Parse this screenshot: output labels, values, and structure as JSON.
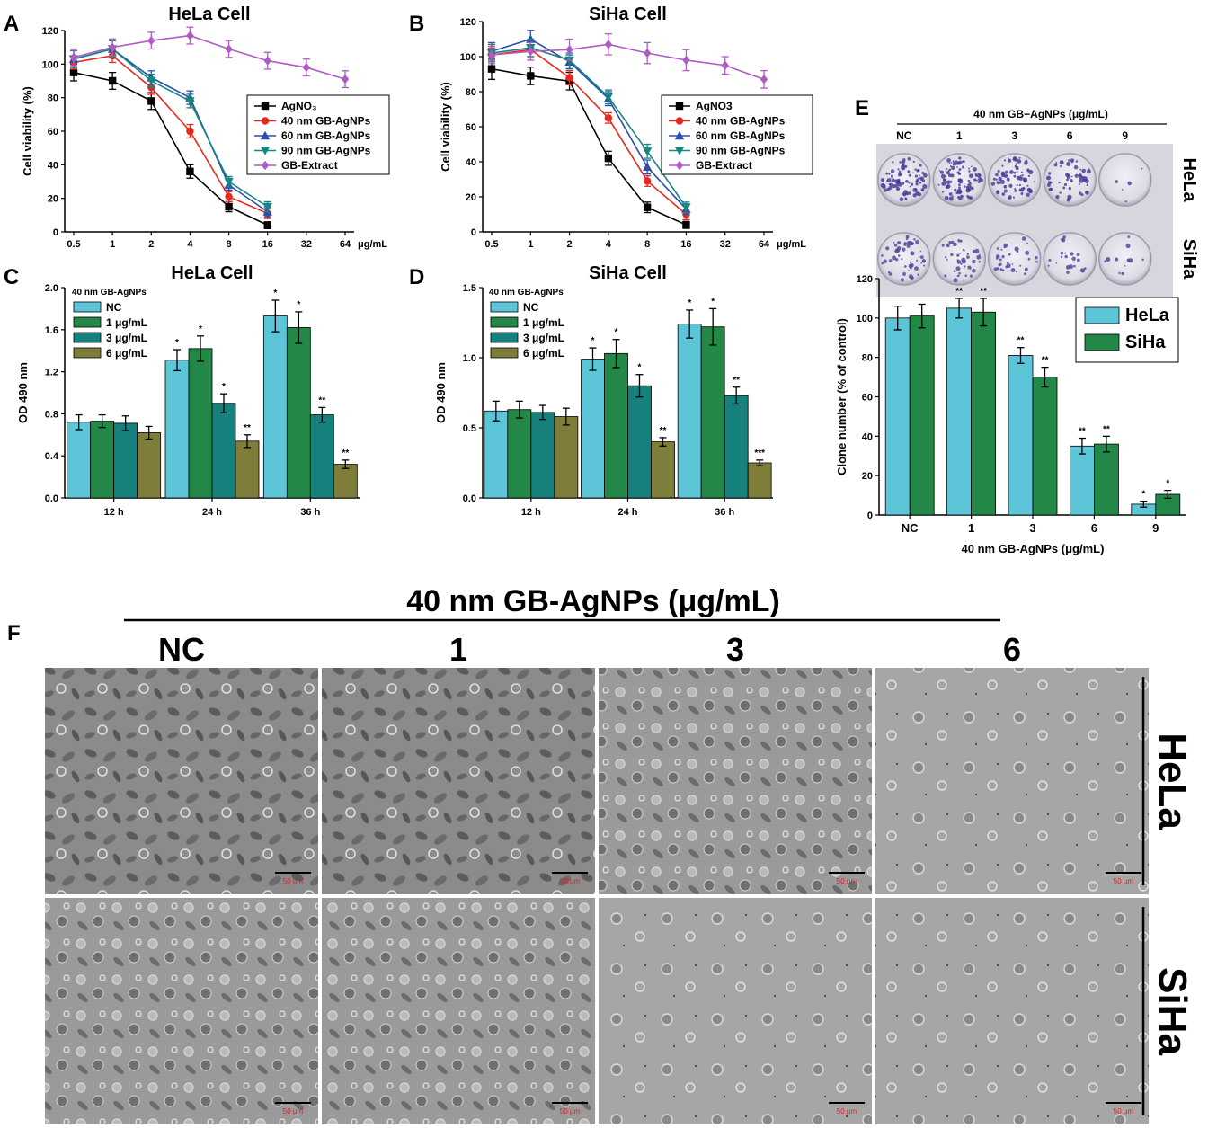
{
  "panels": {
    "A": "A",
    "B": "B",
    "C": "C",
    "D": "D",
    "E": "E",
    "F": "F"
  },
  "colors": {
    "agno3": "#000000",
    "np40": "#e8281e",
    "np60": "#2b4fb0",
    "np90": "#16877f",
    "extract": "#b05ac4",
    "bar_nc": "#5cc6d8",
    "bar_1": "#228747",
    "bar_3": "#16807c",
    "bar_6": "#7e7e3a",
    "hela": "#5cc6d8",
    "siha": "#228747"
  },
  "chart_data": [
    {
      "id": "A",
      "type": "line",
      "title": "HeLa Cell",
      "xlabel": "",
      "x_unit": "μg/mL",
      "ylabel": "Cell viability (%)",
      "x": [
        "0.5",
        "1",
        "2",
        "4",
        "8",
        "16",
        "32",
        "64"
      ],
      "ylim": [
        0,
        120
      ],
      "yticks": [
        0,
        20,
        40,
        60,
        80,
        100,
        120
      ],
      "legend_position": "center-right",
      "series": [
        {
          "name": "AgNO₃",
          "values": [
            95,
            90,
            78,
            36,
            15,
            4,
            null,
            null
          ],
          "err": [
            5,
            5,
            5,
            4,
            3,
            2,
            null,
            null
          ],
          "color": "#000000",
          "marker": "square"
        },
        {
          "name": "40 nm GB-AgNPs",
          "values": [
            101,
            105,
            86,
            60,
            21,
            11,
            null,
            null
          ],
          "err": [
            4,
            4,
            4,
            4,
            3,
            3,
            null,
            null
          ],
          "color": "#e8281e",
          "marker": "circle"
        },
        {
          "name": "60 nm GB-AgNPs",
          "values": [
            103,
            109,
            92,
            80,
            28,
            12,
            null,
            null
          ],
          "err": [
            5,
            5,
            4,
            4,
            3,
            3,
            null,
            null
          ],
          "color": "#2b4fb0",
          "marker": "triangle"
        },
        {
          "name": "90 nm GB-AgNPs",
          "values": [
            103,
            109,
            90,
            78,
            30,
            15,
            null,
            null
          ],
          "err": [
            5,
            5,
            4,
            4,
            3,
            3,
            null,
            null
          ],
          "color": "#16877f",
          "marker": "triangle-down"
        },
        {
          "name": "GB-Extract",
          "values": [
            104,
            110,
            114,
            117,
            109,
            102,
            98,
            91
          ],
          "err": [
            5,
            5,
            5,
            5,
            5,
            5,
            5,
            5
          ],
          "color": "#b05ac4",
          "marker": "diamond"
        }
      ]
    },
    {
      "id": "B",
      "type": "line",
      "title": "SiHa Cell",
      "xlabel": "",
      "x_unit": "μg/mL",
      "ylabel": "Cell viability (%)",
      "x": [
        "0.5",
        "1",
        "2",
        "4",
        "8",
        "16",
        "32",
        "64"
      ],
      "ylim": [
        0,
        120
      ],
      "yticks": [
        0,
        20,
        40,
        60,
        80,
        100,
        120
      ],
      "legend_position": "center-right",
      "series": [
        {
          "name": "AgNO3",
          "values": [
            93,
            89,
            86,
            42,
            14,
            4,
            null,
            null
          ],
          "err": [
            6,
            5,
            5,
            4,
            3,
            2,
            null,
            null
          ],
          "color": "#000000",
          "marker": "square"
        },
        {
          "name": "40 nm GB-AgNPs",
          "values": [
            101,
            104,
            88,
            65,
            29,
            10,
            null,
            null
          ],
          "err": [
            4,
            4,
            4,
            3,
            3,
            3,
            null,
            null
          ],
          "color": "#e8281e",
          "marker": "circle"
        },
        {
          "name": "60 nm GB-AgNPs",
          "values": [
            103,
            110,
            97,
            76,
            37,
            13,
            null,
            null
          ],
          "err": [
            5,
            5,
            4,
            4,
            4,
            3,
            null,
            null
          ],
          "color": "#2b4fb0",
          "marker": "triangle"
        },
        {
          "name": "90 nm GB-AgNPs",
          "values": [
            102,
            105,
            98,
            77,
            46,
            14,
            null,
            null
          ],
          "err": [
            5,
            5,
            4,
            4,
            4,
            3,
            null,
            null
          ],
          "color": "#16877f",
          "marker": "triangle-down"
        },
        {
          "name": "GB-Extract",
          "values": [
            101,
            103,
            104,
            107,
            102,
            98,
            95,
            87
          ],
          "err": [
            5,
            5,
            6,
            6,
            6,
            6,
            5,
            5
          ],
          "color": "#b05ac4",
          "marker": "diamond"
        }
      ]
    },
    {
      "id": "C",
      "type": "bar",
      "title": "HeLa Cell",
      "ylabel": "OD 490 nm",
      "categories": [
        "12 h",
        "24 h",
        "36 h"
      ],
      "ylim": [
        0,
        2.0
      ],
      "yticks": [
        "0.0",
        "0.4",
        "0.8",
        "1.2",
        "1.6",
        "2.0"
      ],
      "legend_title": "40 nm GB-AgNPs",
      "series": [
        {
          "name": "NC",
          "values": [
            0.72,
            1.31,
            1.73
          ],
          "err": [
            0.07,
            0.1,
            0.15
          ],
          "sig": [
            "",
            "*",
            "*"
          ]
        },
        {
          "name": "1 μg/mL",
          "values": [
            0.73,
            1.42,
            1.62
          ],
          "err": [
            0.06,
            0.12,
            0.15
          ],
          "sig": [
            "",
            "*",
            "*"
          ]
        },
        {
          "name": "3 μg/mL",
          "values": [
            0.71,
            0.9,
            0.79
          ],
          "err": [
            0.07,
            0.09,
            0.07
          ],
          "sig": [
            "",
            "*",
            "**"
          ]
        },
        {
          "name": "6 μg/mL",
          "values": [
            0.62,
            0.54,
            0.32
          ],
          "err": [
            0.06,
            0.06,
            0.04
          ],
          "sig": [
            "",
            "**",
            "**"
          ]
        }
      ]
    },
    {
      "id": "D",
      "type": "bar",
      "title": "SiHa Cell",
      "ylabel": "OD 490 nm",
      "categories": [
        "12 h",
        "24 h",
        "36 h"
      ],
      "ylim": [
        0,
        1.5
      ],
      "yticks": [
        "0.0",
        "0.5",
        "1.0",
        "1.5"
      ],
      "legend_title": "40 nm GB-AgNPs",
      "series": [
        {
          "name": "NC",
          "values": [
            0.62,
            0.99,
            1.24
          ],
          "err": [
            0.07,
            0.08,
            0.1
          ],
          "sig": [
            "",
            "*",
            "*"
          ]
        },
        {
          "name": "1 μg/mL",
          "values": [
            0.63,
            1.03,
            1.22
          ],
          "err": [
            0.06,
            0.1,
            0.13
          ],
          "sig": [
            "",
            "*",
            "*"
          ]
        },
        {
          "name": "3 μg/mL",
          "values": [
            0.61,
            0.8,
            0.73
          ],
          "err": [
            0.05,
            0.08,
            0.06
          ],
          "sig": [
            "",
            "*",
            "**"
          ]
        },
        {
          "name": "6 μg/mL",
          "values": [
            0.58,
            0.4,
            0.25
          ],
          "err": [
            0.06,
            0.03,
            0.02
          ],
          "sig": [
            "",
            "**",
            "***"
          ]
        }
      ]
    },
    {
      "id": "E",
      "type": "bar",
      "xlabel": "40 nm GB-AgNPs (μg/mL)",
      "ylabel": "Clone number (% of control)",
      "categories": [
        "NC",
        "1",
        "3",
        "6",
        "9"
      ],
      "ylim": [
        0,
        120
      ],
      "yticks": [
        0,
        20,
        40,
        60,
        80,
        100,
        120
      ],
      "legend_position": "top-right",
      "series": [
        {
          "name": "HeLa",
          "values": [
            100,
            105,
            81,
            35,
            5.5
          ],
          "err": [
            6,
            5,
            4,
            4,
            1.5
          ],
          "sig": [
            "",
            "**",
            "**",
            "**",
            "*"
          ]
        },
        {
          "name": "SiHa",
          "values": [
            101,
            103,
            70,
            36,
            10.5
          ],
          "err": [
            6,
            7,
            5,
            4,
            2
          ],
          "sig": [
            "",
            "**",
            "**",
            "**",
            "*"
          ]
        }
      ]
    }
  ],
  "colony": {
    "header": "40 nm GB−AgNPs (μg/mL)",
    "columns": [
      "NC",
      "1",
      "3",
      "6",
      "9"
    ],
    "rows": [
      "HeLa",
      "SiHa"
    ]
  },
  "micrographs": {
    "header": "40  nm  GB-AgNPs  (μg/mL)",
    "columns": [
      "NC",
      "1",
      "3",
      "6"
    ],
    "rows": [
      "HeLa",
      "SiHa"
    ],
    "scale_label": "50 μm"
  }
}
